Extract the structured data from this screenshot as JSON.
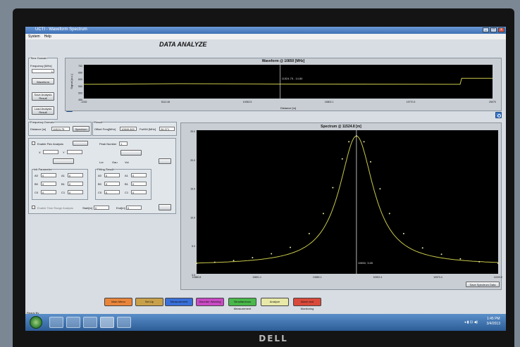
{
  "window": {
    "title": "UCTI - Waveform Spectrum",
    "controls": [
      "_",
      "□",
      "x"
    ]
  },
  "menu": [
    "System",
    "Help"
  ],
  "app_title": "DATA ANALYZE",
  "time_domain": {
    "group_label": "Time Domain",
    "frequency_label": "Frequency [MHz]",
    "frequency_value": "1",
    "waveform_button": "Waveform",
    "save_button": "Save Analysis Result",
    "load_button": "Load Analysis Result"
  },
  "frequency_domain": {
    "group_label": "Frequency Domain",
    "distance_label": "Distance [m]",
    "distance_value": "11524.75",
    "spectrum_button": "Spectrum"
  },
  "result": {
    "group_label": "Result",
    "offset_label": "Offset Freq[MHz]",
    "offset_value": "10849.800",
    "fwhm_label": "FwHM [MHz]",
    "fwhm_value": "26.371"
  },
  "flex_analysis": {
    "enable_label": "Enable Flex Analysis",
    "peak_number_label": "Peak Number",
    "peak_number_value": "1",
    "x_label": "X",
    "y_label": "Y",
    "radio_labels": [
      "Lor",
      "Gau",
      "Voi"
    ],
    "init_param_label": "Init Parameter",
    "fitting_result_label": "Fitting Result",
    "param_names": [
      "A0",
      "A1",
      "B0",
      "B1",
      "C0",
      "C1"
    ],
    "init_values": [
      "0",
      "0",
      "0",
      "0",
      "0",
      "0"
    ],
    "fit_values": [
      "0",
      "0",
      "0",
      "0",
      "0",
      "0"
    ],
    "enable_range_label": "Enable Time Range Analysis",
    "start_label": "Start[m]",
    "start_value": "0",
    "end_label": "End[m]",
    "end_value": "0"
  },
  "waveform_chart": {
    "title": "Waveform @ 10850 [MHz]",
    "ylabel": "Signal [a.u.]",
    "xlabel": "Distance [m]",
    "x_ticks": [
      "-1002",
      "5112.46",
      "10052.5",
      "15802.1",
      "19770.3",
      "25070"
    ],
    "y_ticks": [
      "700",
      "650",
      "600",
      "550",
      "500",
      "450"
    ],
    "cursor_label": "11524.75 , 14.80"
  },
  "spectrum_chart": {
    "title": "Spectrum @ 11524.8 [m]",
    "y_ticks": [
      "25.0",
      "20.0",
      "15.0",
      "10.0",
      "5.0",
      "0.0"
    ],
    "x_ticks": [
      "10680.8",
      "10801.1",
      "10850.1",
      "10902.4",
      "10970.4",
      "11000.0"
    ],
    "cursor_label": "10850, 3.85",
    "footer_button": "Save Spectrum Data"
  },
  "chart_data": [
    {
      "type": "line",
      "title": "Waveform @ 10850 [MHz]",
      "xlabel": "Distance [m]",
      "ylabel": "Signal [a.u.]",
      "x": [
        -1002,
        5112.46,
        10052.5,
        15802.1,
        19770.3,
        23000,
        23100,
        25070
      ],
      "series": [
        {
          "values": [
            555,
            560,
            558,
            557,
            556,
            555,
            600,
            600
          ]
        }
      ],
      "xlim": [
        -1002,
        25070
      ],
      "ylim": [
        450,
        700
      ],
      "grid": false
    },
    {
      "type": "scatter",
      "title": "Spectrum @ 11524.8 [m]",
      "x": [
        10680.8,
        10700,
        10720,
        10740,
        10760,
        10780,
        10800,
        10815,
        10825,
        10835,
        10842,
        10850,
        10858,
        10865,
        10875,
        10885,
        10900,
        10920,
        10940,
        10960,
        10980,
        11000
      ],
      "series": [
        {
          "values": [
            1.8,
            2.0,
            2.3,
            2.8,
            3.5,
            4.6,
            7.0,
            10.5,
            15.0,
            20.0,
            23.0,
            24.0,
            23.0,
            19.5,
            14.8,
            10.5,
            7.0,
            4.5,
            3.4,
            2.6,
            2.1,
            1.8
          ]
        }
      ],
      "xlim": [
        10680.8,
        11000
      ],
      "ylim": [
        0,
        25
      ],
      "grid": false
    }
  ],
  "nav_buttons": [
    {
      "label": "Main Menu",
      "color": "#e9853a"
    },
    {
      "label": "Set Up",
      "color": "#c9a04a"
    },
    {
      "label": "Measurement",
      "color": "#3a6fd8"
    },
    {
      "label": "Disorder Warning",
      "color": "#c94ac4"
    },
    {
      "label": "Simultaneous Measurement",
      "color": "#4ab84a"
    },
    {
      "label": "Analyze",
      "color": "#e8e8a8"
    },
    {
      "label": "Alarm and Monitoring",
      "color": "#d94a3a"
    }
  ],
  "status_text": "Ready By",
  "monitor_brand": "DELL",
  "tray": {
    "time": "1:45 PM",
    "date": "3/4/2013",
    "icons": "◂ ▮ ⊡ ◀)"
  }
}
